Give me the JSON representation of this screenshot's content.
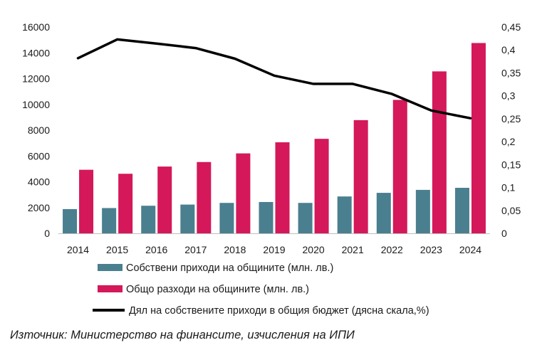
{
  "chart_data": {
    "type": "bar+line",
    "categories": [
      "2014",
      "2015",
      "2016",
      "2017",
      "2018",
      "2019",
      "2020",
      "2021",
      "2022",
      "2023",
      "2024"
    ],
    "series": [
      {
        "name": "Собствени приходи на общините (млн. лв.)",
        "kind": "bar",
        "axis": "left",
        "color": "#4a7f8f",
        "values": [
          1880,
          1960,
          2140,
          2230,
          2360,
          2430,
          2360,
          2860,
          3140,
          3370,
          3530
        ]
      },
      {
        "name": "Общо разходи на общините (млн. лв.)",
        "kind": "bar",
        "axis": "left",
        "color": "#d4185a",
        "values": [
          4930,
          4620,
          5180,
          5530,
          6200,
          7060,
          7330,
          8780,
          10350,
          12560,
          14760
        ]
      },
      {
        "name": "Дял на собствените приходи в общия бюджет (дясна скала,%)",
        "kind": "line",
        "axis": "right",
        "color": "#000000",
        "values": [
          0.382,
          0.423,
          0.414,
          0.404,
          0.381,
          0.344,
          0.326,
          0.326,
          0.304,
          0.268,
          0.251
        ]
      }
    ],
    "y_left": {
      "min": 0,
      "max": 16000,
      "ticks": [
        0,
        2000,
        4000,
        6000,
        8000,
        10000,
        12000,
        14000,
        16000
      ],
      "tick_labels": [
        "0",
        "2000",
        "4000",
        "6000",
        "8000",
        "10000",
        "12000",
        "14000",
        "16000"
      ]
    },
    "y_right": {
      "min": 0,
      "max": 0.45,
      "ticks": [
        0,
        0.05,
        0.1,
        0.15,
        0.2,
        0.25,
        0.3,
        0.35,
        0.4,
        0.45
      ],
      "tick_labels": [
        "0",
        "0,05",
        "0,1",
        "0,15",
        "0,2",
        "0,25",
        "0,3",
        "0,35",
        "0,4",
        "0,45"
      ]
    },
    "grid": false,
    "legend_position": "bottom"
  },
  "source": "Източник: Министерство на финансите, изчисления на ИПИ"
}
